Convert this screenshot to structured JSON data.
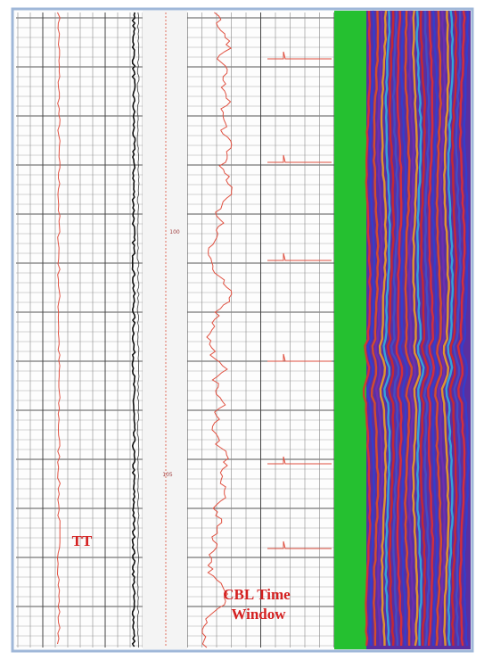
{
  "labels": {
    "tt": "TT",
    "cbl_line1": "CBL Time",
    "cbl_line2": "Window"
  },
  "depth_labels": [
    "100",
    "105"
  ]
}
